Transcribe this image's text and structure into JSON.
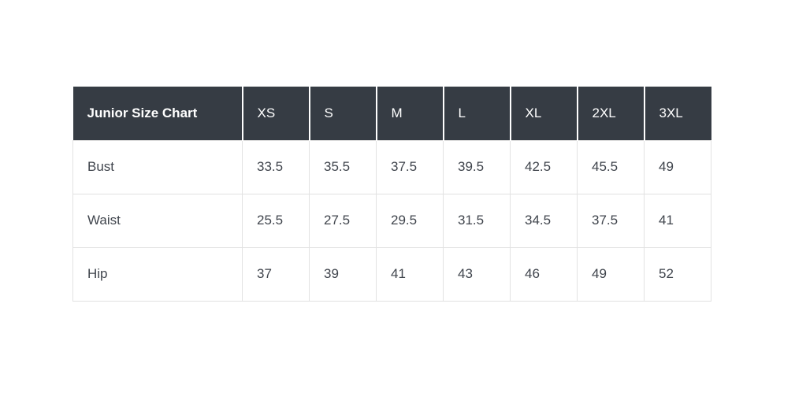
{
  "chart_data": {
    "type": "table",
    "title": "Junior Size Chart",
    "columns": [
      "Junior Size Chart",
      "XS",
      "S",
      "M",
      "L",
      "XL",
      "2XL",
      "3XL"
    ],
    "rows": [
      [
        "Bust",
        "33.5",
        "35.5",
        "37.5",
        "39.5",
        "42.5",
        "45.5",
        "49"
      ],
      [
        "Waist",
        "25.5",
        "27.5",
        "29.5",
        "31.5",
        "34.5",
        "37.5",
        "41"
      ],
      [
        "Hip",
        "37",
        "39",
        "41",
        "43",
        "46",
        "49",
        "52"
      ]
    ]
  },
  "colors": {
    "header_bg": "#363c44",
    "header_text": "#ffffff",
    "body_text": "#40454d",
    "border": "#e2e2e2",
    "header_divider": "#ffffff",
    "page_bg": "#ffffff"
  }
}
